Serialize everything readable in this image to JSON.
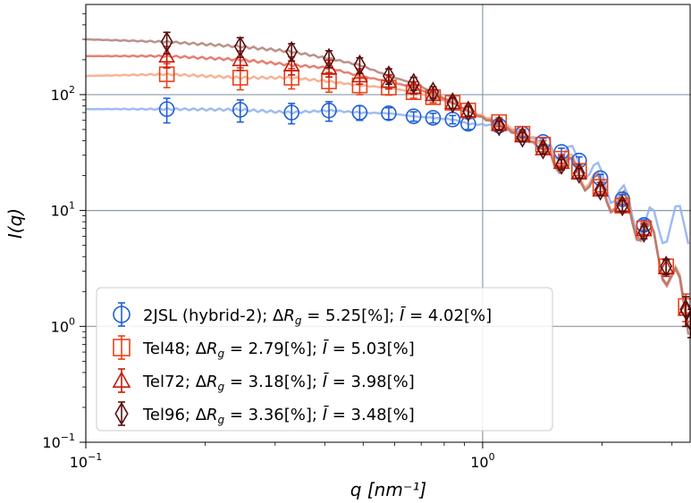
{
  "chart_data": {
    "type": "scatter",
    "title": "",
    "xlabel": "q [nm⁻¹]",
    "ylabel": "I(q)",
    "xscale": "log",
    "yscale": "log",
    "xlim": [
      0.1,
      3.35
    ],
    "ylim": [
      0.1,
      600
    ],
    "grid": true,
    "legend_position": "bottom-left",
    "x_ticks": [
      {
        "value": 0.1,
        "base": "10",
        "exp": "−1"
      },
      {
        "value": 1,
        "base": "10",
        "exp": "0"
      }
    ],
    "y_ticks": [
      {
        "value": 0.1,
        "base": "10",
        "exp": "−1"
      },
      {
        "value": 1,
        "base": "10",
        "exp": "0"
      },
      {
        "value": 10,
        "base": "10",
        "exp": "1"
      },
      {
        "value": 100,
        "base": "10",
        "exp": "2"
      }
    ],
    "series": [
      {
        "name": "2JSL (hybrid-2)",
        "legend": {
          "name": "2JSL (hybrid-2)",
          "rg": "5.25[%]",
          "ib": "4.02[%]"
        },
        "marker": "circle",
        "color": "#1f5fd6",
        "line_color": "#8fb0ec",
        "x": [
          0.16,
          0.245,
          0.33,
          0.41,
          0.49,
          0.58,
          0.67,
          0.75,
          0.84,
          0.92,
          1.1,
          1.26,
          1.42,
          1.58,
          1.75,
          1.98,
          2.25,
          2.55
        ],
        "y": [
          75,
          74,
          70,
          73,
          70,
          69,
          65,
          63,
          61,
          56,
          54,
          46,
          39,
          32,
          27,
          19,
          12.5,
          7.5
        ],
        "err": [
          18,
          16,
          14,
          14,
          10,
          8,
          6,
          6,
          5,
          6,
          4,
          3,
          3,
          2.5,
          2,
          1.5,
          1.2,
          0.8
        ],
        "line_y0": 75
      },
      {
        "name": "Tel48",
        "legend": {
          "name": "Tel48",
          "rg": "2.79[%]",
          "ib": "5.03[%]"
        },
        "marker": "square",
        "color": "#e8431b",
        "line_color": "#f5a784",
        "x": [
          0.16,
          0.245,
          0.33,
          0.41,
          0.49,
          0.58,
          0.67,
          0.75,
          0.84,
          0.92,
          1.1,
          1.26,
          1.42,
          1.58,
          1.75,
          1.98,
          2.25,
          2.55,
          2.9,
          3.25
        ],
        "y": [
          150,
          140,
          140,
          130,
          120,
          115,
          105,
          95,
          85,
          73,
          58,
          46,
          37,
          28,
          22,
          16,
          11,
          7,
          3.3,
          1.5
        ],
        "err": [
          35,
          30,
          28,
          25,
          20,
          16,
          12,
          10,
          9,
          7,
          5,
          4,
          3,
          2.5,
          2,
          1.5,
          1.2,
          0.8,
          0.5,
          0.4
        ],
        "line_y0": 145
      },
      {
        "name": "Tel72",
        "legend": {
          "name": "Tel72",
          "rg": "3.18[%]",
          "ib": "3.98[%]"
        },
        "marker": "triangle",
        "color": "#c21d0c",
        "line_color": "#e06a5a",
        "x": [
          0.16,
          0.245,
          0.33,
          0.41,
          0.49,
          0.58,
          0.67,
          0.75,
          0.84,
          0.92,
          1.1,
          1.26,
          1.42,
          1.58,
          1.75,
          1.98,
          2.25,
          2.55,
          2.9,
          3.25
        ],
        "y": [
          215,
          200,
          180,
          170,
          145,
          130,
          115,
          100,
          85,
          72,
          55,
          44,
          34,
          26,
          21,
          15,
          11,
          6.8,
          3.2,
          1.4
        ],
        "err": [
          45,
          38,
          32,
          28,
          22,
          18,
          14,
          11,
          9,
          7,
          5,
          4,
          3,
          2.5,
          2,
          1.5,
          1.2,
          0.8,
          0.5,
          0.4
        ],
        "line_y0": 215
      },
      {
        "name": "Tel96",
        "legend": {
          "name": "Tel96",
          "rg": "3.36[%]",
          "ib": "3.48[%]"
        },
        "marker": "diamond",
        "color": "#5a1010",
        "line_color": "#b07e76",
        "x": [
          0.16,
          0.245,
          0.33,
          0.41,
          0.49,
          0.58,
          0.67,
          0.75,
          0.84,
          0.92,
          1.1,
          1.26,
          1.42,
          1.58,
          1.75,
          1.98,
          2.25,
          2.55,
          2.9,
          3.25,
          3.35
        ],
        "y": [
          285,
          260,
          235,
          205,
          180,
          145,
          125,
          105,
          85,
          72,
          54,
          43,
          34,
          25,
          21,
          15,
          11,
          6.5,
          3.3,
          1.4,
          1.1
        ],
        "err": [
          60,
          50,
          40,
          34,
          28,
          22,
          16,
          12,
          9,
          7,
          5,
          4,
          3,
          2.5,
          2,
          1.5,
          1.2,
          0.8,
          0.5,
          0.4,
          0.3
        ],
        "line_y0": 300
      }
    ]
  }
}
